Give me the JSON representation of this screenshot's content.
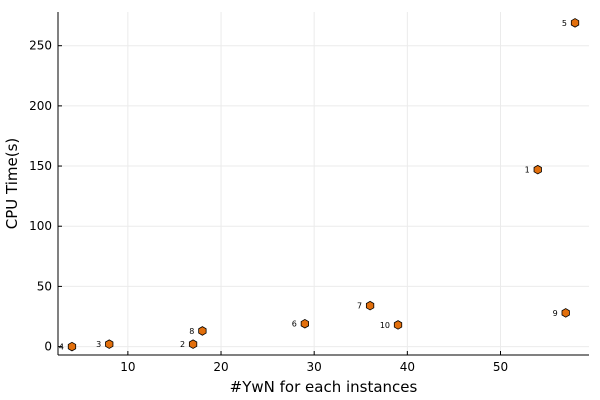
{
  "chart_data": {
    "type": "scatter",
    "title": "",
    "xlabel": "#YwN for each instances",
    "ylabel": "CPU Time(s)",
    "xlim": [
      2.5,
      59.5
    ],
    "ylim": [
      -7,
      278
    ],
    "x_ticks": [
      10,
      20,
      30,
      40,
      50
    ],
    "y_ticks": [
      0,
      50,
      100,
      150,
      200,
      250
    ],
    "grid": true,
    "legend": "none",
    "marker": "hexagon",
    "marker_color": "#e26f0c",
    "points": [
      {
        "label": "1",
        "x": 54,
        "y": 147
      },
      {
        "label": "2",
        "x": 17,
        "y": 2
      },
      {
        "label": "3",
        "x": 8,
        "y": 2
      },
      {
        "label": "4",
        "x": 4,
        "y": 0
      },
      {
        "label": "5",
        "x": 58,
        "y": 269
      },
      {
        "label": "6",
        "x": 29,
        "y": 19
      },
      {
        "label": "7",
        "x": 36,
        "y": 34
      },
      {
        "label": "8",
        "x": 18,
        "y": 13
      },
      {
        "label": "9",
        "x": 57,
        "y": 28
      },
      {
        "label": "10",
        "x": 39,
        "y": 18
      }
    ]
  }
}
